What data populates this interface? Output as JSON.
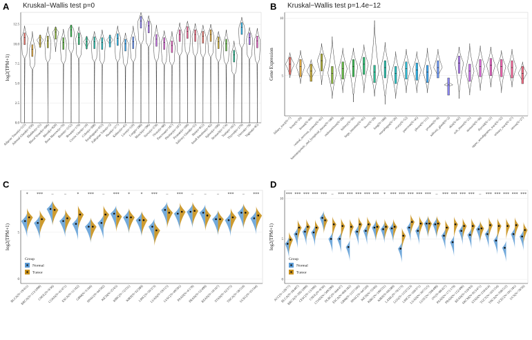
{
  "figure": {
    "panels": [
      "A",
      "B",
      "C",
      "D"
    ]
  },
  "colors": {
    "normal": "#5b9bd5",
    "tumor": "#c8901a",
    "grid": "#ebebeb",
    "axis": "#444444"
  },
  "chart_data": [
    {
      "panel": "A",
      "type": "violin",
      "title": "Kruskal−Wallis test p=0",
      "ylabel": "log2(TPM+1)",
      "yticks": [
        "0.0",
        "2.5",
        "5.0",
        "7.5",
        "10.0",
        "12.5"
      ],
      "ylim": [
        0,
        14
      ],
      "categories": [
        "Adipose Tissue(n=515)",
        "Adrenal Gland(n=258)",
        "Bladder(n=21)",
        "Blood Vessel(n=606)",
        "Blood(n=929)",
        "Bone Marrow(n=70)",
        "Brain(n=1152)",
        "Breast(n=179)",
        "Cervix Uteri(n=19)",
        "Colon(n=308)",
        "Esophagus(n=653)",
        "Fallopian Tube(n=5)",
        "Heart(n=377)",
        "Kidney(n=45)",
        "Liver(n=110)",
        "Lung(n=288)",
        "Muscle(n=396)",
        "Nerve(n=278)",
        "Ovary(n=88)",
        "Pancreas(n=167)",
        "Pituitary(n=107)",
        "Prostate(n=100)",
        "Salivary Gland(n=55)",
        "Skin(n=812)",
        "Small Intestine(n=92)",
        "Spleen(n=100)",
        "Stomach(n=174)",
        "Testis(n=165)",
        "Thyroid(n=279)",
        "Uterus(n=78)",
        "Vagina(n=85)"
      ],
      "medians": [
        10.8,
        9.3,
        10.5,
        10.4,
        11.5,
        10.2,
        11.8,
        10.8,
        10.3,
        10.3,
        10.2,
        10.5,
        10.7,
        10.0,
        10.3,
        12.9,
        12.3,
        10.6,
        10.2,
        9.8,
        11.2,
        11.6,
        11.2,
        11.0,
        11.2,
        10.3,
        10.0,
        8.6,
        12.1,
        10.8,
        10.4
      ],
      "mins": [
        0,
        0,
        9.5,
        0,
        9.0,
        0,
        0,
        0,
        9.3,
        0,
        0,
        9.8,
        0,
        0,
        0,
        0,
        0,
        0,
        0,
        0,
        0,
        0,
        0,
        0,
        0,
        0,
        0,
        0,
        0,
        0,
        0
      ],
      "maxs": [
        12.3,
        11.6,
        11.2,
        12.2,
        12.2,
        11.9,
        12.4,
        12.2,
        11.0,
        11.6,
        11.8,
        11.2,
        12.3,
        11.4,
        12.3,
        14.0,
        13.6,
        12.4,
        11.7,
        11.6,
        12.7,
        12.9,
        12.6,
        12.4,
        12.5,
        11.6,
        11.8,
        10.4,
        13.4,
        12.1,
        12.0
      ],
      "colors": [
        "#e8756c",
        "#d9a441",
        "#c3a93a",
        "#a9a93a",
        "#8ab23e",
        "#62b545",
        "#3cb752",
        "#2fba74",
        "#2dbb93",
        "#2cbcaa",
        "#2bbdc0",
        "#2bbad3",
        "#2cb1e4",
        "#3ba4ee",
        "#6893f1",
        "#8b86f0",
        "#ab79ec",
        "#c36ee3",
        "#d767d4",
        "#e463c2",
        "#ec63ac",
        "#ef6696",
        "#ee6b82",
        "#e8756c",
        "#d9a441",
        "#c3a93a",
        "#62b545",
        "#2dbb93",
        "#2cb1e4",
        "#ab79ec",
        "#e463c2"
      ]
    },
    {
      "panel": "B",
      "type": "violin",
      "title": "Kruskal−Wallis test p=1.4e−12",
      "ylabel": "Gene Expression",
      "yticks": [
        "5",
        "10"
      ],
      "ylim": [
        1.5,
        10.5
      ],
      "categories": [
        "biliary_tract(N=7)",
        "bone(N=29)",
        "breast(N=60)",
        "central_nervous_system(N=65)",
        "haematopoietic_and_lymphoid_tissue(N=180)",
        "endometrium(N=28)",
        "kidney(N=36)",
        "large_intestine(N=65)",
        "liver(N=28)",
        "lung(N=188)",
        "oesophagus(N=26)",
        "ovary(N=52)",
        "pancreas(N=45)",
        "pleura(N=111)",
        "prostate(N=8)",
        "salivary_gland(N=2)",
        "skin(N=62)",
        "soft_tissue(N=21)",
        "stomach(N=38)",
        "thyroid(N=12)",
        "upper_aerodigestive_tract(N=32)",
        "urinary_tract(N=27)",
        "uterus(N=27)"
      ],
      "medians": [
        6.0,
        5.8,
        5.4,
        6.3,
        5.2,
        5.6,
        5.8,
        6.0,
        5.3,
        5.7,
        5.2,
        5.6,
        5.5,
        5.3,
        5.7,
        4.2,
        6.1,
        5.4,
        5.8,
        5.9,
        5.8,
        5.7,
        5.2
      ],
      "mins": [
        4.8,
        4.3,
        4.5,
        4.2,
        3.0,
        3.5,
        2.7,
        3.5,
        3.2,
        2.5,
        3.0,
        3.5,
        3.5,
        3.5,
        4.8,
        4.0,
        3.0,
        3.3,
        3.7,
        4.0,
        3.5,
        4.0,
        4.3
      ],
      "maxs": [
        7.0,
        7.2,
        6.4,
        7.8,
        8.4,
        7.4,
        7.4,
        7.7,
        9.8,
        7.9,
        7.1,
        7.3,
        7.1,
        7.4,
        7.3,
        4.5,
        7.5,
        7.8,
        7.6,
        7.5,
        7.2,
        7.3,
        6.2
      ],
      "colors": [
        "#e8756c",
        "#d9a441",
        "#c3a93a",
        "#a9a93a",
        "#8ab23e",
        "#62b545",
        "#3cb752",
        "#2fba74",
        "#2dbb93",
        "#2cbcaa",
        "#2bbdc0",
        "#2bbad3",
        "#2cb1e4",
        "#3ba4ee",
        "#6893f1",
        "#8b86f0",
        "#ab79ec",
        "#c36ee3",
        "#d767d4",
        "#e463c2",
        "#ec63ac",
        "#ef6696",
        "#ee6b82"
      ]
    },
    {
      "panel": "C",
      "type": "split-violin",
      "ylabel": "log2(TPM+1)",
      "yticks": [
        "0",
        "5"
      ],
      "ylim": [
        -0.5,
        9.5
      ],
      "legend": {
        "title": "Group",
        "items": [
          "Normal",
          "Tumor"
        ],
        "position": "bottom-left"
      },
      "categories": [
        "BLCA(N=19/411)",
        "BRCA(N=113/1098)",
        "CHOL(N=9/36)",
        "COAD(N=41/471)",
        "ESCA(N=11/162)",
        "GBM(N=5/166)",
        "HNSC(N=44/502)",
        "KICH(N=25/65)",
        "KIRC(N=72/531)",
        "KIRP(N=32/289)",
        "LIHC(N=50/373)",
        "LUAD(N=59/515)",
        "LUSC(N=49/501)",
        "PAAD(N=4/178)",
        "PRAD(N=52/499)",
        "READ(N=10/167)",
        "STAD(N=32/375)",
        "THCA(N=58/510)",
        "UCEC(N=35/544)"
      ],
      "significance": [
        "*",
        "***",
        "–",
        "–",
        "*",
        "***",
        "–",
        "***",
        "*",
        "*",
        "***",
        "–",
        "***",
        "–",
        "–",
        "–",
        "***",
        "–",
        "***"
      ],
      "normal_medians": [
        6.2,
        6.0,
        7.5,
        6.2,
        5.9,
        5.6,
        6.0,
        7.0,
        6.6,
        6.3,
        5.6,
        7.4,
        7.0,
        7.2,
        7.1,
        6.4,
        6.3,
        7.1,
        6.5
      ],
      "tumor_medians": [
        6.6,
        6.4,
        7.4,
        6.5,
        6.9,
        5.6,
        6.9,
        6.7,
        6.6,
        6.3,
        5.2,
        7.1,
        7.2,
        7.3,
        6.8,
        6.4,
        6.6,
        7.1,
        6.8
      ]
    },
    {
      "panel": "D",
      "type": "split-violin",
      "ylabel": "log2(TPM+1)",
      "yticks": [
        "0",
        "5",
        "10"
      ],
      "ylim": [
        -0.5,
        11
      ],
      "legend": {
        "title": "Group",
        "items": [
          "Normal",
          "Tumor"
        ],
        "position": "bottom-left"
      },
      "categories": [
        "ACC(N=128/77)",
        "BLCA(N=28/407)",
        "BRCA(N=292/1099)",
        "CESC(N=13/306)",
        "CHOL(N=9/36)",
        "COAD(N=349/290)",
        "DLBC(N=444/47)",
        "ESCA(N=666/182)",
        "GBM(N=1157/166)",
        "HNSC(N=44/520)",
        "KICH(N=53/66)",
        "KIRC(N=100/531)",
        "KIRP(N=60/289)",
        "LAML(N=70/173)",
        "LGG(N=1152/523)",
        "LIHC(N=160/371)",
        "LUAD(N=347/515)",
        "LUSC(N=338/498)",
        "OV(N=88/427)",
        "PAAD(N=171/179)",
        "PRAD(N=152/496)",
        "READ(N=318/93)",
        "SKCM(N=813/471)",
        "STAD(N=210/414)",
        "TGCT(N=165/154)",
        "THCA(N=338/512)",
        "UCEC(N=101/181)",
        "UCS(N=78/56)"
      ],
      "significance": [
        "***",
        "***",
        "***",
        "***",
        "***",
        "–",
        "***",
        "***",
        "***",
        "***",
        "***",
        "*",
        "***",
        "***",
        "***",
        "***",
        "***",
        "–",
        "***",
        "***",
        "***",
        "***",
        "–",
        "***",
        "***",
        "***",
        "***",
        "***"
      ],
      "normal_medians": [
        4.4,
        5.6,
        5.9,
        5.8,
        7.6,
        5.0,
        5.0,
        4.0,
        5.9,
        6.0,
        6.4,
        6.2,
        6.3,
        3.8,
        6.4,
        6.0,
        6.9,
        6.8,
        5.4,
        4.6,
        6.0,
        5.5,
        6.2,
        5.6,
        4.8,
        3.9,
        5.6,
        5.3
      ],
      "tumor_medians": [
        4.9,
        6.4,
        6.5,
        6.4,
        7.3,
        6.8,
        6.6,
        6.5,
        6.8,
        6.8,
        6.5,
        6.5,
        6.5,
        5.4,
        7.1,
        6.9,
        6.9,
        6.9,
        6.4,
        6.8,
        6.6,
        6.6,
        6.3,
        6.7,
        6.6,
        6.6,
        6.7,
        6.1
      ]
    }
  ]
}
